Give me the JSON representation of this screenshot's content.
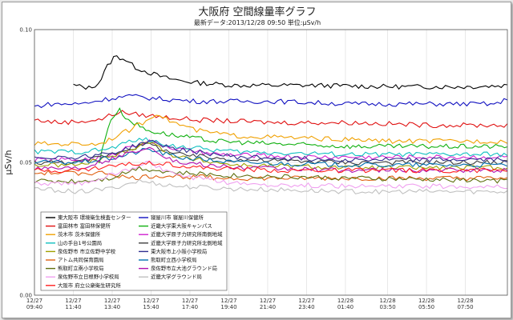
{
  "chart_data": {
    "type": "line",
    "title": "大阪府 空間線量率グラフ",
    "subtitle": "最新データ:2013/12/28 09:50 単位:μSv/h",
    "ylabel": "μSv/h",
    "ylim": [
      0,
      0.1
    ],
    "y_ticks": [
      "0.10",
      "0.05",
      "0.00"
    ],
    "grid": true,
    "legend_position": "bottom-left",
    "x_tick_labels": [
      [
        "12/27",
        "09:40"
      ],
      [
        "12/27",
        "11:40"
      ],
      [
        "12/27",
        "13:40"
      ],
      [
        "12/27",
        "15:40"
      ],
      [
        "12/27",
        "17:40"
      ],
      [
        "12/27",
        "19:40"
      ],
      [
        "12/27",
        "21:40"
      ],
      [
        "12/27",
        "23:40"
      ],
      [
        "12/28",
        "01:40"
      ],
      [
        "12/28",
        "03:50"
      ],
      [
        "12/28",
        "05:50"
      ],
      [
        "12/28",
        "07:50"
      ]
    ],
    "x_start_hour": 9.667,
    "x_end_hour": 34.0,
    "series": [
      {
        "name": "東大阪市 環境衛生検査センター",
        "color": "#000000",
        "start_hour": 11.67,
        "points": [
          [
            11.67,
            0.079
          ],
          [
            12.5,
            0.078
          ],
          [
            13.0,
            0.08
          ],
          [
            13.4,
            0.086
          ],
          [
            13.8,
            0.09
          ],
          [
            14.3,
            0.089
          ],
          [
            14.8,
            0.086
          ],
          [
            15.5,
            0.084
          ],
          [
            16.3,
            0.082
          ],
          [
            17.0,
            0.081
          ],
          [
            18.0,
            0.08
          ],
          [
            20.0,
            0.079
          ],
          [
            24.0,
            0.079
          ],
          [
            28.0,
            0.0785
          ],
          [
            32.0,
            0.0785
          ],
          [
            34.0,
            0.079
          ]
        ]
      },
      {
        "name": "寝屋川市 寝屋川保健所",
        "color": "#1010c0",
        "start_hour": 9.67,
        "points": [
          [
            9.67,
            0.071
          ],
          [
            10.5,
            0.072
          ],
          [
            12.0,
            0.072
          ],
          [
            13.5,
            0.074
          ],
          [
            14.5,
            0.075
          ],
          [
            16.0,
            0.074
          ],
          [
            18.0,
            0.073
          ],
          [
            22.0,
            0.073
          ],
          [
            26.0,
            0.072
          ],
          [
            30.0,
            0.072
          ],
          [
            33.5,
            0.072
          ],
          [
            34.0,
            0.074
          ]
        ]
      },
      {
        "name": "富田林市 富田林保健所",
        "color": "#e01010",
        "start_hour": 9.67,
        "points": [
          [
            9.67,
            0.066
          ],
          [
            11.0,
            0.065
          ],
          [
            13.0,
            0.066
          ],
          [
            14.0,
            0.069
          ],
          [
            15.0,
            0.068
          ],
          [
            16.5,
            0.067
          ],
          [
            18.0,
            0.066
          ],
          [
            22.0,
            0.065
          ],
          [
            26.0,
            0.065
          ],
          [
            30.0,
            0.064
          ],
          [
            34.0,
            0.064
          ]
        ]
      },
      {
        "name": "近畿大学東大阪キャンパス",
        "color": "#10b010",
        "start_hour": 13.0,
        "points": [
          [
            13.0,
            0.05
          ],
          [
            13.5,
            0.065
          ],
          [
            14.0,
            0.07
          ],
          [
            14.5,
            0.066
          ],
          [
            15.5,
            0.062
          ],
          [
            17.0,
            0.06
          ],
          [
            19.0,
            0.058
          ],
          [
            22.0,
            0.057
          ],
          [
            26.0,
            0.056
          ],
          [
            30.0,
            0.056
          ],
          [
            34.0,
            0.056
          ]
        ]
      },
      {
        "name": "茨木市 茨木保健所",
        "color": "#f0a000",
        "start_hour": 9.67,
        "points": [
          [
            9.67,
            0.057
          ],
          [
            11.0,
            0.057
          ],
          [
            13.0,
            0.057
          ],
          [
            14.5,
            0.062
          ],
          [
            15.5,
            0.066
          ],
          [
            16.0,
            0.069
          ],
          [
            16.5,
            0.066
          ],
          [
            18.0,
            0.062
          ],
          [
            20.0,
            0.06
          ],
          [
            24.0,
            0.059
          ],
          [
            28.0,
            0.058
          ],
          [
            34.0,
            0.058
          ]
        ]
      },
      {
        "name": "近畿大学原子力研究所南側地域",
        "color": "#d020d0",
        "start_hour": 9.67,
        "points": [
          [
            9.67,
            0.051
          ],
          [
            12.0,
            0.051
          ],
          [
            13.5,
            0.052
          ],
          [
            14.5,
            0.056
          ],
          [
            15.5,
            0.058
          ],
          [
            17.0,
            0.055
          ],
          [
            19.0,
            0.053
          ],
          [
            24.0,
            0.052
          ],
          [
            30.0,
            0.052
          ],
          [
            34.0,
            0.052
          ]
        ]
      },
      {
        "name": "山の手台1号公園局",
        "color": "#10c0c0",
        "start_hour": 9.67,
        "points": [
          [
            9.67,
            0.054
          ],
          [
            12.0,
            0.054
          ],
          [
            13.5,
            0.055
          ],
          [
            15.0,
            0.059
          ],
          [
            17.0,
            0.056
          ],
          [
            20.0,
            0.054
          ],
          [
            26.0,
            0.053
          ],
          [
            34.0,
            0.053
          ]
        ]
      },
      {
        "name": "近畿大学原子力研究所北側地域",
        "color": "#404040",
        "start_hour": 9.67,
        "points": [
          [
            9.67,
            0.05
          ],
          [
            12.0,
            0.05
          ],
          [
            14.0,
            0.054
          ],
          [
            15.5,
            0.057
          ],
          [
            17.0,
            0.053
          ],
          [
            20.0,
            0.051
          ],
          [
            26.0,
            0.05
          ],
          [
            34.0,
            0.05
          ]
        ]
      },
      {
        "name": "泉佐野市 市立佐野中学校",
        "color": "#a0a000",
        "start_hour": 9.67,
        "points": [
          [
            9.67,
            0.049
          ],
          [
            12.0,
            0.049
          ],
          [
            14.0,
            0.053
          ],
          [
            15.5,
            0.058
          ],
          [
            17.0,
            0.052
          ],
          [
            20.0,
            0.049
          ],
          [
            26.0,
            0.048
          ],
          [
            34.0,
            0.048
          ]
        ]
      },
      {
        "name": "東大阪市上小阪小学校局",
        "color": "#303090",
        "start_hour": 9.67,
        "points": [
          [
            9.67,
            0.052
          ],
          [
            12.0,
            0.052
          ],
          [
            14.0,
            0.054
          ],
          [
            15.5,
            0.058
          ],
          [
            17.0,
            0.055
          ],
          [
            20.0,
            0.052
          ],
          [
            26.0,
            0.051
          ],
          [
            34.0,
            0.051
          ]
        ]
      },
      {
        "name": "アトム共同保育園局",
        "color": "#e06010",
        "start_hour": 9.67,
        "points": [
          [
            9.67,
            0.046
          ],
          [
            12.0,
            0.046
          ],
          [
            13.5,
            0.046
          ],
          [
            14.5,
            0.044
          ],
          [
            16.0,
            0.045
          ],
          [
            20.0,
            0.044
          ],
          [
            26.0,
            0.044
          ],
          [
            34.0,
            0.044
          ]
        ]
      },
      {
        "name": "熊取町立西小学校局",
        "color": "#0070b0",
        "start_hour": 9.67,
        "points": [
          [
            9.67,
            0.05
          ],
          [
            12.0,
            0.05
          ],
          [
            14.0,
            0.052
          ],
          [
            15.5,
            0.055
          ],
          [
            17.0,
            0.052
          ],
          [
            20.0,
            0.05
          ],
          [
            26.0,
            0.049
          ],
          [
            34.0,
            0.049
          ]
        ]
      },
      {
        "name": "熊取町立南小学校局",
        "color": "#607010",
        "start_hour": 9.67,
        "points": [
          [
            9.67,
            0.043
          ],
          [
            12.0,
            0.043
          ],
          [
            13.5,
            0.044
          ],
          [
            15.0,
            0.048
          ],
          [
            17.0,
            0.046
          ],
          [
            20.0,
            0.045
          ],
          [
            26.0,
            0.044
          ],
          [
            34.0,
            0.043
          ]
        ]
      },
      {
        "name": "泉佐野市立大池グラウンド局",
        "color": "#b010b0",
        "start_hour": 9.67,
        "points": [
          [
            9.67,
            0.048
          ],
          [
            12.0,
            0.048
          ],
          [
            14.0,
            0.052
          ],
          [
            15.5,
            0.056
          ],
          [
            17.0,
            0.05
          ],
          [
            20.0,
            0.048
          ],
          [
            26.0,
            0.047
          ],
          [
            34.0,
            0.047
          ]
        ]
      },
      {
        "name": "泉佐野市立日根野小学校局",
        "color": "#f0a0f0",
        "start_hour": 9.67,
        "points": [
          [
            9.67,
            0.042
          ],
          [
            12.0,
            0.042
          ],
          [
            14.0,
            0.046
          ],
          [
            15.5,
            0.05
          ],
          [
            17.0,
            0.045
          ],
          [
            20.0,
            0.042
          ],
          [
            26.0,
            0.041
          ],
          [
            34.0,
            0.041
          ]
        ]
      },
      {
        "name": "近畿大学グラウンド局",
        "color": "#c0c0c0",
        "start_hour": 9.67,
        "points": [
          [
            9.67,
            0.04
          ],
          [
            12.0,
            0.039
          ],
          [
            13.5,
            0.04
          ],
          [
            15.0,
            0.043
          ],
          [
            17.0,
            0.041
          ],
          [
            20.0,
            0.04
          ],
          [
            26.0,
            0.039
          ],
          [
            34.0,
            0.039
          ]
        ]
      },
      {
        "name": "大阪市 府立公衆衛生研究所",
        "color": "#ff2020",
        "start_hour": 9.67,
        "points": [
          [
            9.67,
            0.047
          ],
          [
            12.0,
            0.047
          ],
          [
            14.0,
            0.049
          ],
          [
            16.0,
            0.05
          ],
          [
            18.0,
            0.048
          ],
          [
            22.0,
            0.047
          ],
          [
            28.0,
            0.047
          ],
          [
            34.0,
            0.047
          ]
        ]
      }
    ],
    "legend_columns": [
      [
        0,
        2,
        4,
        6,
        8,
        10,
        12,
        14,
        16
      ],
      [
        1,
        3,
        5,
        7,
        9,
        11,
        13,
        15
      ]
    ]
  }
}
